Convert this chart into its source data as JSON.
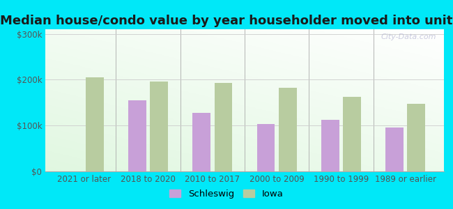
{
  "title": "Median house/condo value by year householder moved into unit",
  "categories": [
    "2021 or later",
    "2018 to 2020",
    "2010 to 2017",
    "2000 to 2009",
    "1990 to 1999",
    "1989 or earlier"
  ],
  "schleswig_values": [
    null,
    155000,
    127000,
    103000,
    113000,
    95000
  ],
  "iowa_values": [
    205000,
    196000,
    193000,
    183000,
    163000,
    148000
  ],
  "schleswig_color": "#c8a0d8",
  "iowa_color": "#b8cca0",
  "background_outer": "#00e8f8",
  "ylabel_ticks": [
    "$0",
    "$100k",
    "$200k",
    "$300k"
  ],
  "ytick_values": [
    0,
    100000,
    200000,
    300000
  ],
  "ylim": [
    0,
    310000
  ],
  "bar_width": 0.28,
  "legend_labels": [
    "Schleswig",
    "Iowa"
  ],
  "title_fontsize": 13,
  "tick_fontsize": 8.5,
  "legend_fontsize": 9.5
}
